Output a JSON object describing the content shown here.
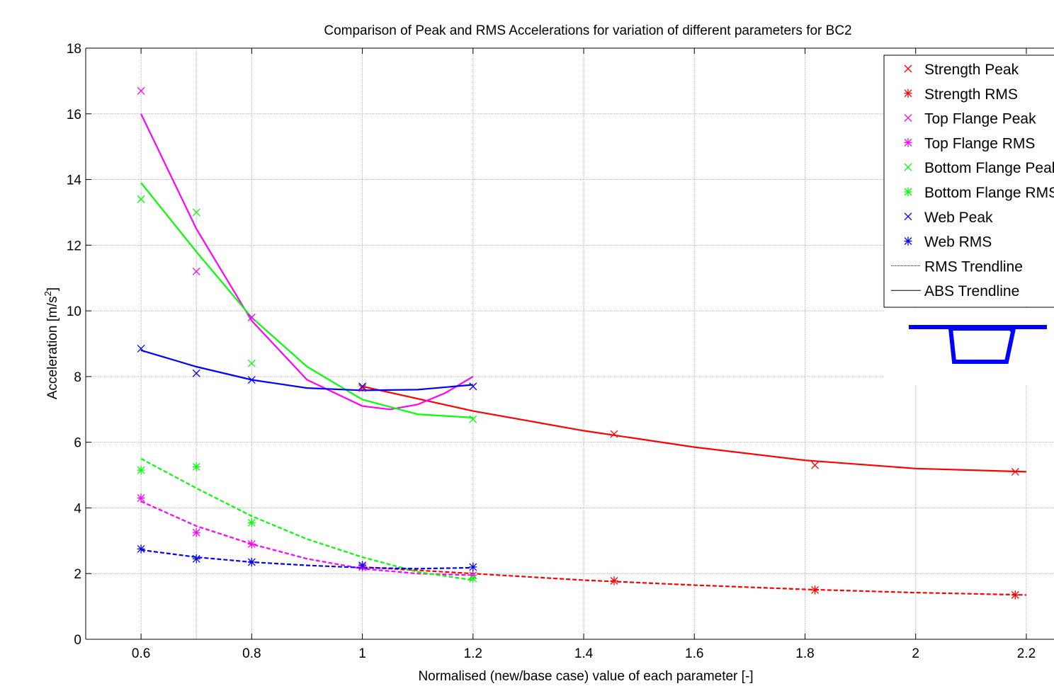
{
  "chart_data": {
    "type": "line",
    "title": "Comparison of Peak and RMS  Accelerations for variation of different parameters for BC2",
    "xlabel": "Normalised (new/base case) value of each parameter [-]",
    "ylabel_main": "Acceleration [m/s",
    "ylabel_sup": "2",
    "ylabel_end": "]",
    "xlim": [
      0.5,
      2.25
    ],
    "ylim": [
      0,
      18
    ],
    "x_ticks": [
      0.6,
      0.8,
      1,
      1.2,
      1.4,
      1.6,
      1.8,
      2,
      2.2
    ],
    "x_tick_labels": [
      "0.6",
      "0.8",
      "1",
      "1.2",
      "1.4",
      "1.6",
      "1.8",
      "2",
      "2.2"
    ],
    "y_ticks": [
      0,
      2,
      4,
      6,
      8,
      10,
      12,
      14,
      16,
      18
    ],
    "y_tick_labels": [
      "0",
      "2",
      "4",
      "6",
      "8",
      "10",
      "12",
      "14",
      "16",
      "18"
    ],
    "x_grid": [
      0.6,
      0.7,
      0.8,
      1,
      1.2,
      1.4,
      1.6,
      1.8,
      2,
      2.2
    ],
    "grid": true,
    "legend_position": "top-right",
    "colors": {
      "strength": "#ff0000",
      "top_flange": "#ff00ff",
      "bottom_flange": "#00ff00",
      "web": "#0000ff",
      "trendline": "#000000"
    },
    "series": [
      {
        "name": "Strength Peak",
        "marker": "x",
        "color": "#ff0000",
        "x": [
          1.0,
          1.455,
          1.818,
          2.18
        ],
        "y": [
          7.65,
          6.25,
          5.3,
          5.1
        ]
      },
      {
        "name": "Strength RMS",
        "marker": "star",
        "color": "#ff0000",
        "x": [
          1.0,
          1.455,
          1.818,
          2.18
        ],
        "y": [
          2.2,
          1.78,
          1.5,
          1.35
        ]
      },
      {
        "name": "Top Flange Peak",
        "marker": "x",
        "color": "#ff00ff",
        "x": [
          0.6,
          0.7,
          0.8,
          1.0,
          1.2
        ],
        "y": [
          16.7,
          11.2,
          9.8,
          7.7,
          7.7
        ]
      },
      {
        "name": "Top Flange RMS",
        "marker": "star",
        "color": "#ff00ff",
        "x": [
          0.6,
          0.7,
          0.8,
          1.0,
          1.2
        ],
        "y": [
          4.3,
          3.25,
          2.9,
          2.2,
          1.95
        ]
      },
      {
        "name": "Bottom Flange Peak",
        "marker": "x",
        "color": "#00ff00",
        "x": [
          0.6,
          0.7,
          0.8,
          1.2
        ],
        "y": [
          13.4,
          13.0,
          8.4,
          6.7
        ]
      },
      {
        "name": "Bottom Flange RMS",
        "marker": "star",
        "color": "#00ff00",
        "x": [
          0.6,
          0.7,
          0.8,
          1.2
        ],
        "y": [
          5.15,
          5.25,
          3.55,
          1.85
        ]
      },
      {
        "name": "Web Peak",
        "marker": "x",
        "color": "#0000ff",
        "x": [
          0.6,
          0.7,
          0.8,
          1.0,
          1.2
        ],
        "y": [
          8.85,
          8.1,
          7.9,
          7.7,
          7.7
        ]
      },
      {
        "name": "Web RMS",
        "marker": "star",
        "color": "#0000ff",
        "x": [
          0.6,
          0.7,
          0.8,
          1.0,
          1.2
        ],
        "y": [
          2.75,
          2.45,
          2.35,
          2.25,
          2.2
        ]
      }
    ],
    "trendlines": [
      {
        "series": "Strength Peak",
        "style": "solid",
        "color": "#ff0000",
        "x": [
          1.0,
          1.2,
          1.4,
          1.6,
          1.8,
          2.0,
          2.2
        ],
        "y": [
          7.7,
          6.95,
          6.35,
          5.85,
          5.45,
          5.2,
          5.1
        ]
      },
      {
        "series": "Strength RMS",
        "style": "dashed",
        "color": "#ff0000",
        "x": [
          1.0,
          1.2,
          1.4,
          1.6,
          1.8,
          2.0,
          2.2
        ],
        "y": [
          2.2,
          2.0,
          1.8,
          1.65,
          1.52,
          1.42,
          1.35
        ]
      },
      {
        "series": "Top Flange Peak",
        "style": "solid",
        "color": "#ff00ff",
        "x": [
          0.6,
          0.7,
          0.8,
          0.9,
          1.0,
          1.05,
          1.1,
          1.15,
          1.2
        ],
        "y": [
          16.0,
          12.5,
          9.7,
          7.9,
          7.1,
          7.0,
          7.15,
          7.5,
          8.0
        ]
      },
      {
        "series": "Top Flange RMS",
        "style": "dashed",
        "color": "#ff00ff",
        "x": [
          0.6,
          0.7,
          0.8,
          0.9,
          1.0,
          1.1,
          1.2
        ],
        "y": [
          4.2,
          3.45,
          2.9,
          2.45,
          2.15,
          2.0,
          1.95
        ]
      },
      {
        "series": "Bottom Flange Peak",
        "style": "solid",
        "color": "#00ff00",
        "x": [
          0.6,
          0.7,
          0.8,
          0.9,
          1.0,
          1.1,
          1.2
        ],
        "y": [
          13.9,
          11.8,
          9.8,
          8.3,
          7.3,
          6.85,
          6.75
        ]
      },
      {
        "series": "Bottom Flange RMS",
        "style": "dashed",
        "color": "#00ff00",
        "x": [
          0.6,
          0.7,
          0.8,
          0.9,
          1.0,
          1.1,
          1.2
        ],
        "y": [
          5.5,
          4.6,
          3.75,
          3.05,
          2.5,
          2.05,
          1.8
        ]
      },
      {
        "series": "Web Peak",
        "style": "solid",
        "color": "#0000ff",
        "x": [
          0.6,
          0.7,
          0.8,
          0.9,
          1.0,
          1.1,
          1.2
        ],
        "y": [
          8.8,
          8.3,
          7.9,
          7.65,
          7.58,
          7.6,
          7.75
        ]
      },
      {
        "series": "Web RMS",
        "style": "dashed",
        "color": "#0000ff",
        "x": [
          0.6,
          0.7,
          0.8,
          0.9,
          1.0,
          1.1,
          1.2
        ],
        "y": [
          2.72,
          2.5,
          2.35,
          2.25,
          2.18,
          2.15,
          2.18
        ]
      }
    ],
    "legend": [
      {
        "label": "Strength Peak",
        "marker": "x",
        "color": "#ff0000"
      },
      {
        "label": "Strength RMS",
        "marker": "star",
        "color": "#ff0000"
      },
      {
        "label": "Top Flange Peak",
        "marker": "x",
        "color": "#ff00ff"
      },
      {
        "label": "Top Flange RMS",
        "marker": "star",
        "color": "#ff00ff"
      },
      {
        "label": "Bottom Flange Peak",
        "marker": "x",
        "color": "#00ff00"
      },
      {
        "label": "Bottom Flange RMS",
        "marker": "star",
        "color": "#00ff00"
      },
      {
        "label": "Web Peak",
        "marker": "x",
        "color": "#0000ff"
      },
      {
        "label": "Web RMS",
        "marker": "star",
        "color": "#0000ff"
      },
      {
        "label": "RMS Trendline",
        "marker": "dotted-line",
        "color": "#000000"
      },
      {
        "label": "ABS Trendline",
        "marker": "solid-line",
        "color": "#000000"
      }
    ],
    "inset_icon": {
      "name": "box-girder-cross-section-icon",
      "color": "#0000ff"
    }
  }
}
